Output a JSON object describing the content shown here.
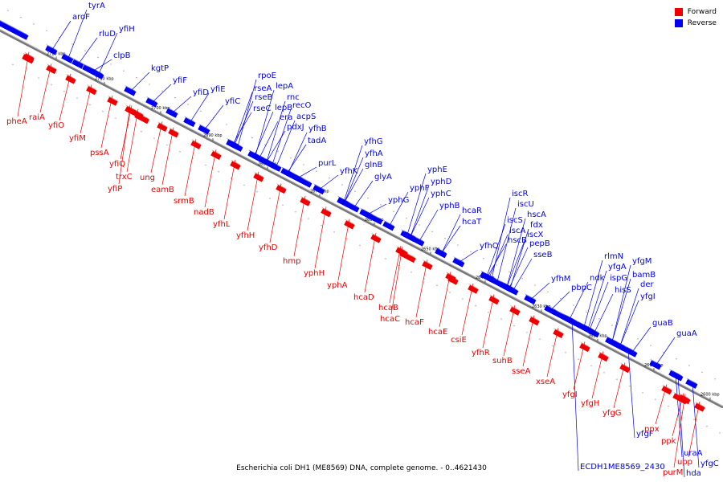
{
  "legend": {
    "forward_label": "Forward",
    "reverse_label": "Reverse",
    "forward_color": "#ee0000",
    "reverse_color": "#0000ee"
  },
  "caption": "Escherichia coli DH1 (ME8569) DNA, complete genome. - 0..4621430",
  "ticks": [
    "2720 kbp",
    "2710 kbp",
    "2700 kbp",
    "2690 kbp",
    "2680 kbp",
    "2670 kbp",
    "2660 kbp",
    "2650 kbp",
    "2640 kbp",
    "2630 kbp",
    "2620 kbp",
    "2610 kbp",
    "2600 kbp"
  ],
  "reverse_genes": [
    "tyrA",
    "aroF",
    "rluD",
    "yfiH",
    "clpB",
    "kgtP",
    "yfiF",
    "yfiD",
    "yfiE",
    "yfiC",
    "rpoE",
    "rseA",
    "lepA",
    "rseB",
    "rnc",
    "rseC",
    "lepB",
    "recO",
    "era",
    "acpS",
    "pdxJ",
    "yfhB",
    "tadA",
    "yfhG",
    "yfhA",
    "purL",
    "yfhK",
    "glnB",
    "glyA",
    "yphE",
    "yphD",
    "yphF",
    "yphG",
    "yphC",
    "yphB",
    "hcaR",
    "hcaT",
    "iscR",
    "iscU",
    "hscA",
    "iscS",
    "fdx",
    "iscA",
    "iscX",
    "hscB",
    "pepB",
    "yfhQ",
    "sseB",
    "yfhM",
    "rlmN",
    "yfgM",
    "yfgA",
    "ndk",
    "ispG",
    "bamB",
    "pbpC",
    "hisS",
    "der",
    "yfgI",
    "guaB",
    "guaA",
    "yfgF",
    "ECDH1ME8569_2430",
    "uraA",
    "hda",
    "yfgC"
  ],
  "forward_genes": [
    "pheA",
    "raiA",
    "yfiO",
    "yfiM",
    "pssA",
    "yfiQ",
    "trxC",
    "yfiP",
    "ung",
    "eamB",
    "srmB",
    "nadB",
    "yfhL",
    "yfhH",
    "yfhD",
    "hmp",
    "yphH",
    "yphA",
    "hcaD",
    "hcaB",
    "hcaC",
    "hcaF",
    "hcaE",
    "csiE",
    "yfhR",
    "suhB",
    "sseA",
    "xseA",
    "yfgI",
    "yfgH",
    "yfgG",
    "ppx",
    "ppk",
    "upp",
    "purM"
  ]
}
